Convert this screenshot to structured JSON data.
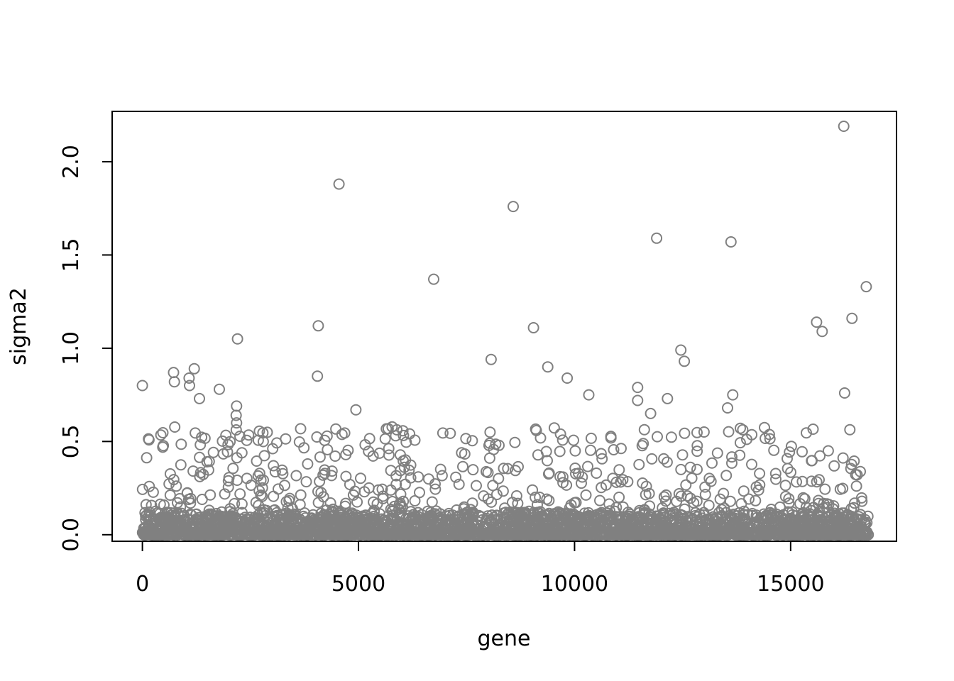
{
  "chart_data": {
    "type": "scatter",
    "title": "",
    "xlabel": "gene",
    "ylabel": "sigma2",
    "xlim": [
      -700,
      17450
    ],
    "ylim": [
      -0.035,
      2.27
    ],
    "x_ticks": [
      0,
      5000,
      10000,
      15000
    ],
    "x_tick_labels": [
      "0",
      "5000",
      "10000",
      "15000"
    ],
    "y_ticks": [
      0.0,
      0.5,
      1.0,
      1.5,
      2.0
    ],
    "y_tick_labels": [
      "0.0",
      "0.5",
      "1.0",
      "1.5",
      "2.0"
    ],
    "grid": false,
    "legend": "none",
    "marker": "open-circle",
    "point_color": "#808080",
    "n_genes": 16800,
    "outliers": [
      {
        "x": 0,
        "y": 0.8
      },
      {
        "x": 720,
        "y": 0.87
      },
      {
        "x": 740,
        "y": 0.82
      },
      {
        "x": 1080,
        "y": 0.84
      },
      {
        "x": 1200,
        "y": 0.89
      },
      {
        "x": 1090,
        "y": 0.8
      },
      {
        "x": 1320,
        "y": 0.73
      },
      {
        "x": 1780,
        "y": 0.78
      },
      {
        "x": 2200,
        "y": 1.05
      },
      {
        "x": 2180,
        "y": 0.69
      },
      {
        "x": 2170,
        "y": 0.64
      },
      {
        "x": 2180,
        "y": 0.6
      },
      {
        "x": 4070,
        "y": 1.12
      },
      {
        "x": 4050,
        "y": 0.85
      },
      {
        "x": 4550,
        "y": 1.88
      },
      {
        "x": 4940,
        "y": 0.67
      },
      {
        "x": 6740,
        "y": 1.37
      },
      {
        "x": 8070,
        "y": 0.94
      },
      {
        "x": 8580,
        "y": 1.76
      },
      {
        "x": 9050,
        "y": 1.11
      },
      {
        "x": 9380,
        "y": 0.9
      },
      {
        "x": 9830,
        "y": 0.84
      },
      {
        "x": 10330,
        "y": 0.75
      },
      {
        "x": 11460,
        "y": 0.79
      },
      {
        "x": 11460,
        "y": 0.72
      },
      {
        "x": 11900,
        "y": 1.59
      },
      {
        "x": 11760,
        "y": 0.65
      },
      {
        "x": 12150,
        "y": 0.73
      },
      {
        "x": 12460,
        "y": 0.99
      },
      {
        "x": 12540,
        "y": 0.93
      },
      {
        "x": 13620,
        "y": 1.57
      },
      {
        "x": 13660,
        "y": 0.75
      },
      {
        "x": 13540,
        "y": 0.68
      },
      {
        "x": 15600,
        "y": 1.14
      },
      {
        "x": 15730,
        "y": 1.09
      },
      {
        "x": 16230,
        "y": 2.19
      },
      {
        "x": 16420,
        "y": 1.16
      },
      {
        "x": 16750,
        "y": 1.33
      },
      {
        "x": 16250,
        "y": 0.76
      }
    ]
  }
}
